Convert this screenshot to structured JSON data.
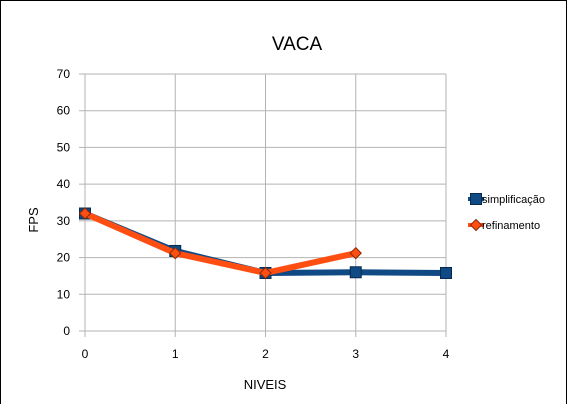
{
  "chart_data": {
    "type": "line",
    "title": "VACA",
    "xlabel": "NIVEIS",
    "ylabel": "FPS",
    "x": [
      0,
      1,
      2,
      3,
      4
    ],
    "xlim": [
      0,
      4
    ],
    "ylim": [
      0,
      70
    ],
    "yticks": [
      0,
      10,
      20,
      30,
      40,
      50,
      60,
      70
    ],
    "grid": true,
    "legend_position": "right",
    "series": [
      {
        "name": "simplificação",
        "color": "#0f4a84",
        "marker": "square",
        "x": [
          0,
          1,
          2,
          3,
          4
        ],
        "values": [
          32,
          21.8,
          15.8,
          16,
          15.8
        ]
      },
      {
        "name": "refinamento",
        "color": "#ff4e12",
        "marker": "diamond",
        "x": [
          0,
          1,
          2,
          3
        ],
        "values": [
          32,
          21.2,
          15.8,
          21.2
        ]
      }
    ]
  }
}
